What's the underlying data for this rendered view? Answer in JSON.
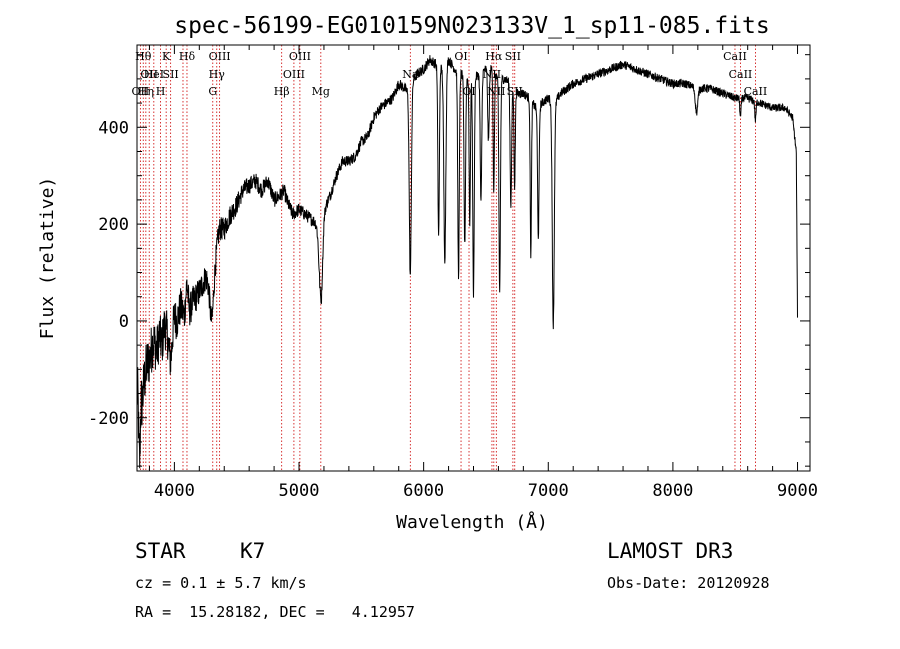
{
  "chart_data": {
    "type": "line",
    "title": "spec-56199-EG010159N023133V_1_sp11-085.fits",
    "xlabel": "Wavelength (Å)",
    "ylabel": "Flux (relative)",
    "xlim": [
      3700,
      9100
    ],
    "ylim": [
      -310,
      570
    ],
    "xticks": [
      4000,
      5000,
      6000,
      7000,
      8000,
      9000
    ],
    "yticks": [
      -200,
      0,
      200,
      400
    ],
    "grid": false,
    "series": [
      {
        "anchors": [
          [
            3700,
            -150
          ],
          [
            3720,
            -130
          ],
          [
            3740,
            -170
          ],
          [
            3760,
            -120
          ],
          [
            3780,
            -90
          ],
          [
            3800,
            -80
          ],
          [
            3830,
            -40
          ],
          [
            3860,
            -60
          ],
          [
            3880,
            -30
          ],
          [
            3900,
            -50
          ],
          [
            3920,
            -10
          ],
          [
            3950,
            -30
          ],
          [
            3970,
            -20
          ],
          [
            4000,
            10
          ],
          [
            4020,
            0
          ],
          [
            4050,
            30
          ],
          [
            4080,
            10
          ],
          [
            4100,
            80
          ],
          [
            4120,
            20
          ],
          [
            4150,
            40
          ],
          [
            4200,
            60
          ],
          [
            4250,
            90
          ],
          [
            4300,
            80
          ],
          [
            4330,
            130
          ],
          [
            4360,
            190
          ],
          [
            4400,
            190
          ],
          [
            4450,
            220
          ],
          [
            4500,
            240
          ],
          [
            4550,
            270
          ],
          [
            4600,
            280
          ],
          [
            4650,
            290
          ],
          [
            4700,
            270
          ],
          [
            4750,
            290
          ],
          [
            4800,
            250
          ],
          [
            4850,
            260
          ],
          [
            4880,
            270
          ],
          [
            4900,
            250
          ],
          [
            4950,
            220
          ],
          [
            5000,
            230
          ],
          [
            5050,
            220
          ],
          [
            5100,
            210
          ],
          [
            5150,
            200
          ],
          [
            5180,
            160
          ],
          [
            5200,
            230
          ],
          [
            5250,
            260
          ],
          [
            5300,
            300
          ],
          [
            5350,
            330
          ],
          [
            5400,
            330
          ],
          [
            5450,
            340
          ],
          [
            5500,
            370
          ],
          [
            5550,
            380
          ],
          [
            5600,
            420
          ],
          [
            5650,
            440
          ],
          [
            5700,
            450
          ],
          [
            5750,
            460
          ],
          [
            5800,
            490
          ],
          [
            5850,
            480
          ],
          [
            5890,
            470
          ],
          [
            5920,
            500
          ],
          [
            5950,
            510
          ],
          [
            6000,
            520
          ],
          [
            6050,
            540
          ],
          [
            6100,
            530
          ],
          [
            6150,
            520
          ],
          [
            6200,
            540
          ],
          [
            6250,
            520
          ],
          [
            6300,
            510
          ],
          [
            6350,
            500
          ],
          [
            6400,
            500
          ],
          [
            6450,
            510
          ],
          [
            6500,
            520
          ],
          [
            6550,
            520
          ],
          [
            6600,
            500
          ],
          [
            6650,
            500
          ],
          [
            6700,
            490
          ],
          [
            6750,
            470
          ],
          [
            6800,
            470
          ],
          [
            6850,
            460
          ],
          [
            6900,
            440
          ],
          [
            6950,
            450
          ],
          [
            7000,
            460
          ],
          [
            7050,
            450
          ],
          [
            7100,
            470
          ],
          [
            7200,
            490
          ],
          [
            7300,
            500
          ],
          [
            7400,
            510
          ],
          [
            7500,
            520
          ],
          [
            7600,
            530
          ],
          [
            7700,
            520
          ],
          [
            7800,
            510
          ],
          [
            7900,
            500
          ],
          [
            8000,
            490
          ],
          [
            8100,
            490
          ],
          [
            8200,
            480
          ],
          [
            8300,
            480
          ],
          [
            8400,
            470
          ],
          [
            8500,
            460
          ],
          [
            8600,
            460
          ],
          [
            8700,
            450
          ],
          [
            8800,
            440
          ],
          [
            8900,
            440
          ],
          [
            8960,
            420
          ],
          [
            8990,
            350
          ],
          [
            9000,
            0
          ]
        ],
        "absorption": [
          [
            3720,
            160,
            6
          ],
          [
            3970,
            60,
            12
          ],
          [
            4300,
            80,
            15
          ],
          [
            5175,
            120,
            15
          ],
          [
            5893,
            380,
            8
          ],
          [
            6120,
            350,
            6
          ],
          [
            6170,
            400,
            8
          ],
          [
            6280,
            420,
            6
          ],
          [
            6330,
            350,
            6
          ],
          [
            6370,
            300,
            5
          ],
          [
            6400,
            450,
            6
          ],
          [
            6460,
            270,
            6
          ],
          [
            6520,
            150,
            6
          ],
          [
            6563,
            250,
            5
          ],
          [
            6610,
            440,
            6
          ],
          [
            6700,
            250,
            6
          ],
          [
            6730,
            200,
            5
          ],
          [
            6860,
            320,
            5
          ],
          [
            6920,
            270,
            6
          ],
          [
            7040,
            460,
            8
          ],
          [
            8190,
            50,
            10
          ],
          [
            8542,
            40,
            5
          ],
          [
            8662,
            40,
            5
          ]
        ],
        "noise": [
          [
            3700,
            60
          ],
          [
            4200,
            30
          ],
          [
            4600,
            18
          ],
          [
            5200,
            12
          ],
          [
            6500,
            10
          ],
          [
            9000,
            8
          ]
        ]
      }
    ],
    "reference_lines": [
      {
        "x": 3727,
        "label": "OII",
        "row": 2
      },
      {
        "x": 3750,
        "label": "Hθ",
        "row": 0
      },
      {
        "x": 3771,
        "label": "Hη",
        "row": 2
      },
      {
        "x": 3798,
        "label": "OII",
        "row": 1
      },
      {
        "x": 3835,
        "label": "HeI",
        "row": 1
      },
      {
        "x": 3889,
        "label": "H",
        "row": 2
      },
      {
        "x": 3934,
        "label": "K",
        "row": 0
      },
      {
        "x": 3970,
        "label": "SII",
        "row": 1
      },
      {
        "x": 4101,
        "label": "Hδ",
        "row": 0
      },
      {
        "x": 4069,
        "label": "",
        "row": -1
      },
      {
        "x": 4308,
        "label": "G",
        "row": 2
      },
      {
        "x": 4340,
        "label": "Hγ",
        "row": 1
      },
      {
        "x": 4363,
        "label": "OIII",
        "row": 0
      },
      {
        "x": 4861,
        "label": "Hβ",
        "row": 2
      },
      {
        "x": 4959,
        "label": "OIII",
        "row": 1
      },
      {
        "x": 5007,
        "label": "OIII",
        "row": 0
      },
      {
        "x": 5175,
        "label": "Mg",
        "row": 2
      },
      {
        "x": 5893,
        "label": "Na",
        "row": 1
      },
      {
        "x": 6300,
        "label": "OI",
        "row": 0
      },
      {
        "x": 6364,
        "label": "OI",
        "row": 2
      },
      {
        "x": 6548,
        "label": "NII",
        "row": 1
      },
      {
        "x": 6563,
        "label": "Hα",
        "row": 0
      },
      {
        "x": 6583,
        "label": "NII",
        "row": 2
      },
      {
        "x": 6716,
        "label": "SII",
        "row": 0
      },
      {
        "x": 6731,
        "label": "SII",
        "row": 2
      },
      {
        "x": 8498,
        "label": "CaII",
        "row": 0
      },
      {
        "x": 8542,
        "label": "CaII",
        "row": 1
      },
      {
        "x": 8662,
        "label": "CaII",
        "row": 2
      }
    ]
  },
  "info": {
    "object_class": "STAR",
    "subclass": "K7",
    "survey": "LAMOST DR3",
    "redshift": "cz = 0.1 ± 5.7 km/s",
    "obs_date": "Obs-Date: 20120928",
    "coords": "RA =  15.28182, DEC =   4.12957"
  }
}
